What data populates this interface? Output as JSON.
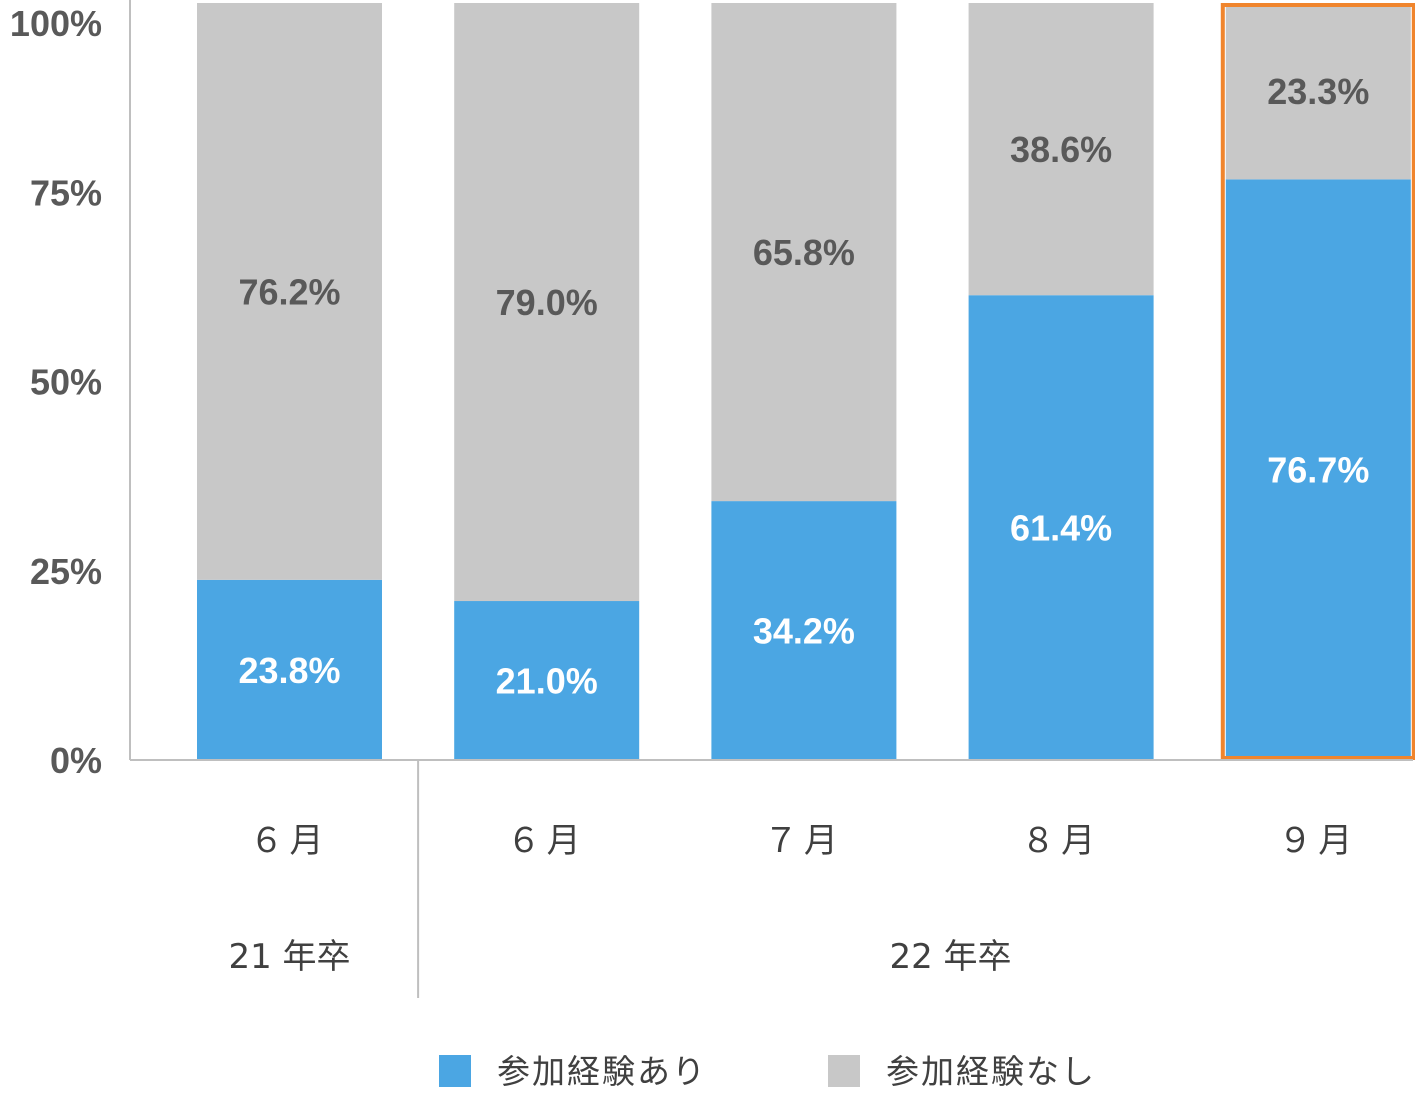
{
  "chart_data": {
    "type": "bar",
    "stacked": true,
    "categories": [
      "６月",
      "６月",
      "７月",
      "８月",
      "９月"
    ],
    "groups": [
      {
        "label": "21 年卒",
        "span": 1
      },
      {
        "label": "22 年卒",
        "span": 4
      }
    ],
    "series": [
      {
        "name": "参加経験あり",
        "color": "#4BA6E3",
        "label_color": "#ffffff",
        "values": [
          23.8,
          21.0,
          34.2,
          61.4,
          76.7
        ],
        "labels": [
          "23.8%",
          "21.0%",
          "34.2%",
          "61.4%",
          "76.7%"
        ]
      },
      {
        "name": "参加経験なし",
        "color": "#C8C8C8",
        "label_color": "#595959",
        "values": [
          76.2,
          79.0,
          65.8,
          38.6,
          23.3
        ],
        "labels": [
          "76.2%",
          "79.0%",
          "65.8%",
          "38.6%",
          "23.3%"
        ]
      }
    ],
    "ylim": [
      0,
      100
    ],
    "yticks": [
      0,
      25,
      50,
      75,
      100
    ],
    "ytick_labels": [
      "0%",
      "25%",
      "50%",
      "75%",
      "100%"
    ],
    "highlight_index": 4,
    "highlight_color": "#F0852D",
    "grid": false,
    "legend_position": "bottom"
  }
}
